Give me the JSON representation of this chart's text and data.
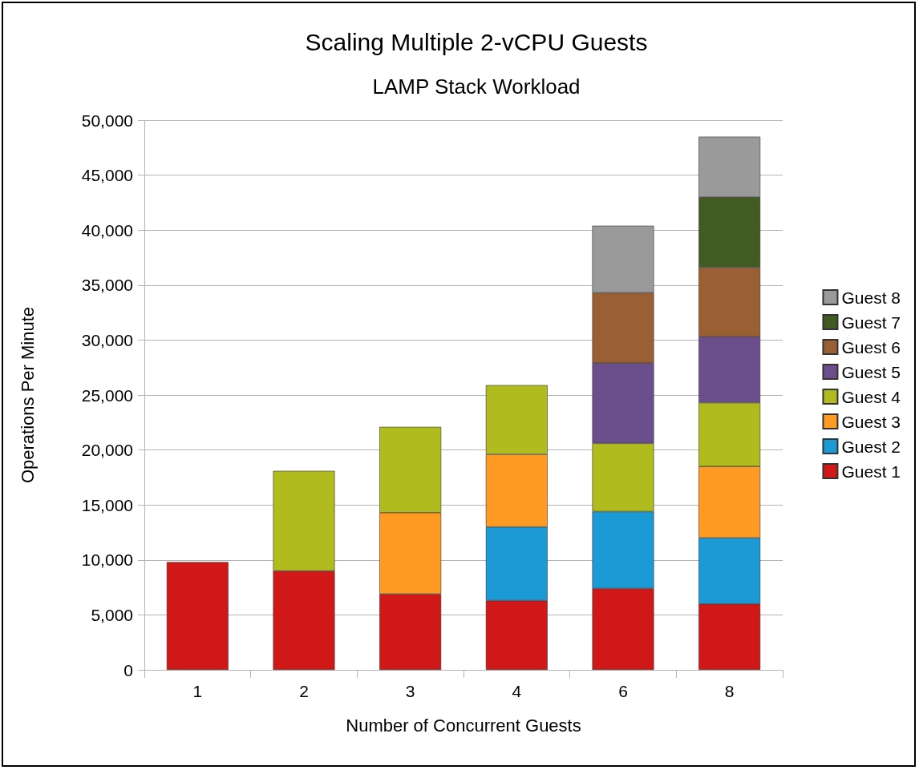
{
  "chart_data": {
    "type": "bar",
    "title": "Scaling Multiple 2-vCPU Guests",
    "subtitle": "LAMP Stack Workload",
    "xlabel": "Number of Concurrent Guests",
    "ylabel": "Operations Per Minute",
    "categories": [
      "1",
      "2",
      "3",
      "4",
      "6",
      "8"
    ],
    "stacked": true,
    "ylim": [
      0,
      50000
    ],
    "yticks": [
      0,
      {
        "value": 5000,
        "label": "5,000"
      },
      {
        "value": 10000,
        "label": "10,000"
      },
      {
        "value": 15000,
        "label": "15,000"
      },
      {
        "value": 20000,
        "label": "20,000"
      },
      {
        "value": 25000,
        "label": "25,000"
      },
      {
        "value": 30000,
        "label": "30,000"
      },
      {
        "value": 35000,
        "label": "35,000"
      },
      {
        "value": 40000,
        "label": "40,000"
      },
      {
        "value": 45000,
        "label": "45,000"
      },
      {
        "value": 50000,
        "label": "50,000"
      }
    ],
    "grid": "y",
    "legend": "right",
    "series": [
      {
        "name": "Guest 1",
        "color": "#d01818",
        "values": [
          9800,
          9000,
          6900,
          6300,
          7400,
          6000
        ]
      },
      {
        "name": "Guest 2",
        "color": "#1c9ad6",
        "values": [
          null,
          null,
          null,
          6700,
          7000,
          6000
        ]
      },
      {
        "name": "Guest 3",
        "color": "#ff9a22",
        "values": [
          null,
          null,
          7400,
          6600,
          null,
          6500
        ]
      },
      {
        "name": "Guest 4",
        "color": "#b0bc1e",
        "values": [
          null,
          9100,
          7800,
          6300,
          6200,
          5800
        ]
      },
      {
        "name": "Guest 5",
        "color": "#6b4f8c",
        "values": [
          null,
          null,
          null,
          null,
          7300,
          6000
        ]
      },
      {
        "name": "Guest 6",
        "color": "#9a6033",
        "values": [
          null,
          null,
          null,
          null,
          6400,
          6300
        ]
      },
      {
        "name": "Guest 7",
        "color": "#415b22",
        "values": [
          null,
          null,
          null,
          null,
          null,
          6400
        ]
      },
      {
        "name": "Guest 8",
        "color": "#9a9a9a",
        "values": [
          null,
          null,
          null,
          null,
          6100,
          5500
        ]
      }
    ]
  }
}
